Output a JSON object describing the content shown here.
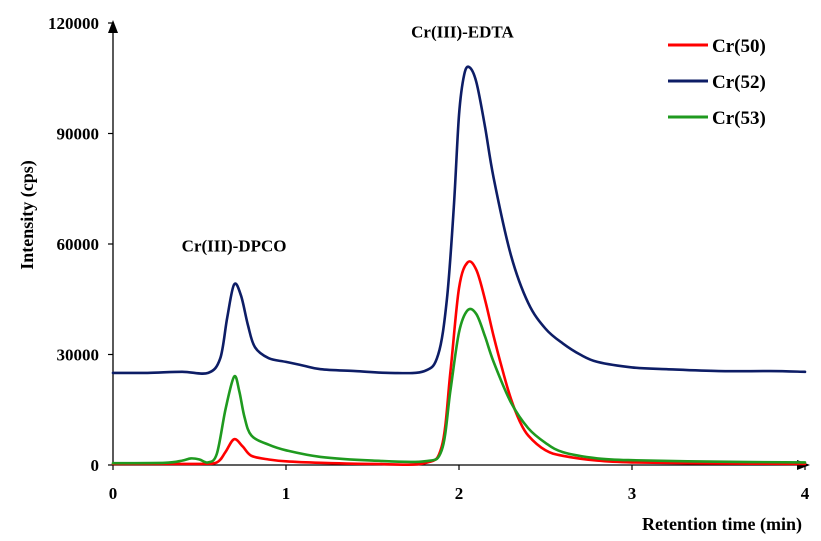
{
  "chart_data": {
    "type": "line",
    "xlabel": "Retention time (min)",
    "ylabel": "Intensity (cps)",
    "xlim": [
      0,
      4
    ],
    "ylim": [
      0,
      120000
    ],
    "xticks": [
      0,
      1,
      2,
      3,
      4
    ],
    "yticks": [
      0,
      30000,
      60000,
      90000,
      120000
    ],
    "xtick_labels": [
      "0",
      "1",
      "2",
      "3",
      "4"
    ],
    "ytick_labels": [
      "0",
      "30000",
      "60000",
      "90000",
      "120000"
    ],
    "grid": false,
    "legend_position": "top-right",
    "annotations": [
      {
        "text": "Cr(III)-DPCO",
        "x": 0.7,
        "y": 58000
      },
      {
        "text": "Cr(III)-EDTA",
        "x": 2.02,
        "y": 116000
      }
    ],
    "series": [
      {
        "name": "Cr(50)",
        "color": "#ff0000",
        "x": [
          0,
          0.3,
          0.5,
          0.6,
          0.65,
          0.7,
          0.75,
          0.8,
          0.9,
          1.0,
          1.2,
          1.5,
          1.8,
          1.9,
          1.95,
          2.0,
          2.05,
          2.1,
          2.15,
          2.2,
          2.25,
          2.3,
          2.35,
          2.4,
          2.5,
          2.6,
          2.8,
          3.0,
          3.5,
          4.0
        ],
        "values": [
          300,
          300,
          300,
          700,
          3500,
          7000,
          5000,
          2500,
          1500,
          1000,
          600,
          300,
          500,
          5000,
          25000,
          48000,
          55000,
          53000,
          45000,
          35000,
          26000,
          18000,
          12000,
          8000,
          4000,
          2500,
          1200,
          700,
          400,
          300
        ]
      },
      {
        "name": "Cr(52)",
        "color": "#0d1d66",
        "x": [
          0,
          0.2,
          0.4,
          0.55,
          0.62,
          0.66,
          0.7,
          0.74,
          0.78,
          0.82,
          0.9,
          1.0,
          1.1,
          1.2,
          1.4,
          1.6,
          1.8,
          1.88,
          1.93,
          1.97,
          2.0,
          2.03,
          2.06,
          2.1,
          2.15,
          2.2,
          2.3,
          2.4,
          2.5,
          2.6,
          2.7,
          2.8,
          3.0,
          3.2,
          3.5,
          3.8,
          4.0
        ],
        "values": [
          25000,
          25000,
          25300,
          25000,
          29000,
          40000,
          49000,
          46000,
          38000,
          32000,
          29000,
          28000,
          27000,
          26000,
          25500,
          25000,
          25500,
          30000,
          45000,
          70000,
          95000,
          106000,
          108000,
          104000,
          92000,
          78000,
          57000,
          44000,
          37000,
          33000,
          30000,
          28000,
          26500,
          26000,
          25500,
          25500,
          25300
        ]
      },
      {
        "name": "Cr(53)",
        "color": "#1f9a1f",
        "x": [
          0,
          0.3,
          0.4,
          0.45,
          0.5,
          0.55,
          0.6,
          0.65,
          0.7,
          0.73,
          0.76,
          0.8,
          0.9,
          1.0,
          1.2,
          1.5,
          1.8,
          1.9,
          1.95,
          2.0,
          2.05,
          2.1,
          2.15,
          2.2,
          2.3,
          2.4,
          2.5,
          2.6,
          2.8,
          3.0,
          3.5,
          4.0
        ],
        "values": [
          500,
          600,
          1200,
          1800,
          1500,
          700,
          3000,
          15000,
          24000,
          20000,
          13000,
          8000,
          5500,
          4000,
          2200,
          1200,
          1000,
          4000,
          20000,
          36000,
          42000,
          41000,
          35000,
          28000,
          17000,
          10000,
          6000,
          3500,
          1800,
          1300,
          900,
          700
        ]
      }
    ]
  }
}
